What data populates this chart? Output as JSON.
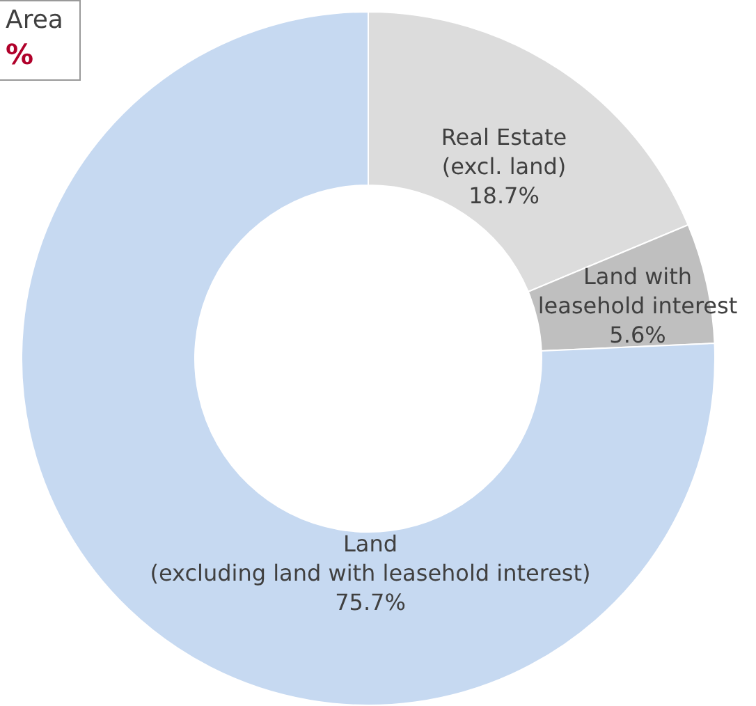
{
  "chart_data": {
    "type": "donut",
    "categories": [
      "Real Estate\n(excl. land)",
      "Land with\nleasehold interest",
      "Land\n(excluding land with leasehold interest)"
    ],
    "values": [
      18.7,
      5.6,
      75.7
    ],
    "colors": [
      "#dcdcdc",
      "#bfbfbf",
      "#c6d9f1"
    ],
    "value_labels": [
      "18.7%",
      "5.6%",
      "75.7%"
    ],
    "legend": false,
    "annotations": [
      "Area",
      "%"
    ]
  }
}
